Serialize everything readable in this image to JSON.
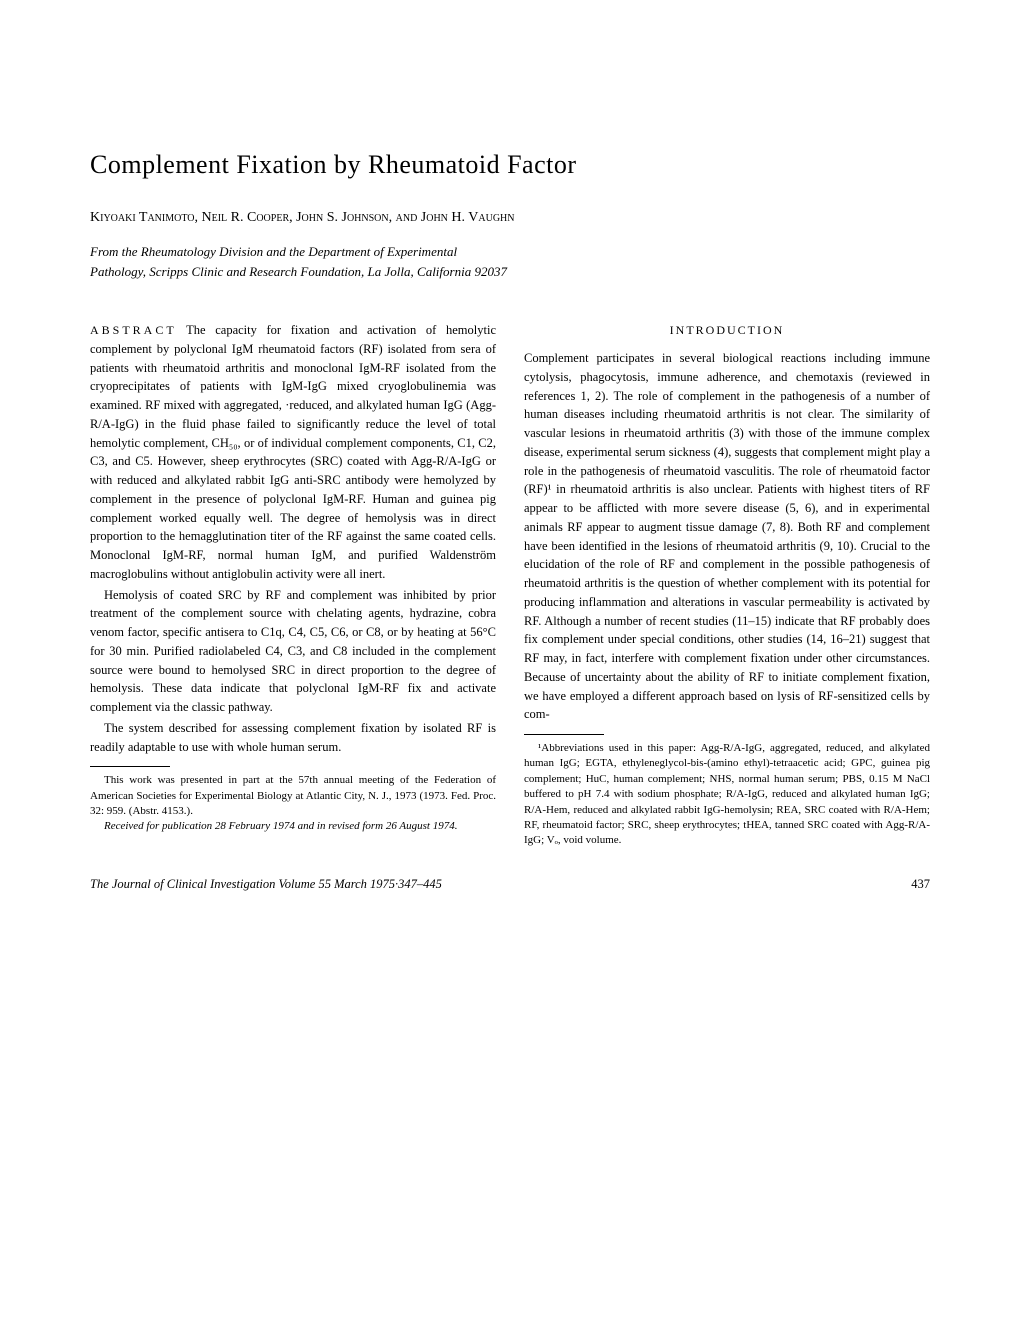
{
  "title": "Complement Fixation by Rheumatoid Factor",
  "authors": "Kiyoaki Tanimoto, Neil R. Cooper, John S. Johnson, and John H. Vaughn",
  "affiliation_line1": "From the Rheumatology Division and the Department of Experimental",
  "affiliation_line2": "Pathology, Scripps Clinic and Research Foundation, La Jolla, California 92037",
  "abstract_label": "ABSTRACT",
  "abstract_p1": "The capacity for fixation and activation of hemolytic complement by polyclonal IgM rheumatoid factors (RF) isolated from sera of patients with rheumatoid arthritis and monoclonal IgM-RF isolated from the cryoprecipitates of patients with IgM-IgG mixed cryoglobulinemia was examined. RF mixed with aggregated, ·reduced, and alkylated human IgG (Agg-R/A-IgG) in the fluid phase failed to significantly reduce the level of total hemolytic complement, CH₅₀, or of individual complement components, C1, C2, C3, and C5. However, sheep erythrocytes (SRC) coated with Agg-R/A-IgG or with reduced and alkylated rabbit IgG anti-SRC antibody were hemolyzed by complement in the presence of polyclonal IgM-RF. Human and guinea pig complement worked equally well. The degree of hemolysis was in direct proportion to the hemagglutination titer of the RF against the same coated cells. Monoclonal IgM-RF, normal human IgM, and purified Waldenström macroglobulins without antiglobulin activity were all inert.",
  "abstract_p2": "Hemolysis of coated SRC by RF and complement was inhibited by prior treatment of the complement source with chelating agents, hydrazine, cobra venom factor, specific antisera to C1q, C4, C5, C6, or C8, or by heating at 56°C for 30 min. Purified radiolabeled C4, C3, and C8 included in the complement source were bound to hemolysed SRC in direct proportion to the degree of hemolysis. These data indicate that polyclonal IgM-RF fix and activate complement via the classic pathway.",
  "abstract_p3": "The system described for assessing complement fixation by isolated RF is readily adaptable to use with whole human serum.",
  "left_fn1": "This work was presented in part at the 57th annual meeting of the Federation of American Societies for Experimental Biology at Atlantic City, N. J., 1973 (1973. Fed. Proc. 32: 959. (Abstr. 4153.).",
  "left_fn2": "Received for publication 28 February 1974 and in revised form 26 August 1974.",
  "intro_head": "INTRODUCTION",
  "intro_p1": "Complement participates in several biological reactions including immune cytolysis, phagocytosis, immune adherence, and chemotaxis (reviewed in references 1, 2). The role of complement in the pathogenesis of a number of human diseases including rheumatoid arthritis is not clear. The similarity of vascular lesions in rheumatoid arthritis (3) with those of the immune complex disease, experimental serum sickness (4), suggests that complement might play a role in the pathogenesis of rheumatoid vasculitis. The role of rheumatoid factor (RF)¹ in rheumatoid arthritis is also unclear. Patients with highest titers of RF appear to be afflicted with more severe disease (5, 6), and in experimental animals RF appear to augment tissue damage (7, 8). Both RF and complement have been identified in the lesions of rheumatoid arthritis (9, 10). Crucial to the elucidation of the role of RF and complement in the possible pathogenesis of rheumatoid arthritis is the question of whether complement with its potential for producing inflammation and alterations in vascular permeability is activated by RF. Although a number of recent studies (11–15) indicate that RF probably does fix complement under special conditions, other studies (14, 16–21) suggest that RF may, in fact, interfere with complement fixation under other circumstances. Because of uncertainty about the ability of RF to initiate complement fixation, we have employed a different approach based on lysis of RF-sensitized cells by com-",
  "right_fn1": "¹Abbreviations used in this paper: Agg-R/A-IgG, aggregated, reduced, and alkylated human IgG; EGTA, ethyleneglycol-bis-(amino ethyl)-tetraacetic acid; GPC, guinea pig complement; HuC, human complement; NHS, normal human serum; PBS, 0.15 M NaCl buffered to pH 7.4 with sodium phosphate; R/A-IgG, reduced and alkylated human IgG; R/A-Hem, reduced and alkylated rabbit IgG-hemolysin; REA, SRC coated with R/A-Hem; RF, rheumatoid factor; SRC, sheep erythrocytes; tHEA, tanned SRC coated with Agg-R/A-IgG; Vₒ, void volume.",
  "journal": "The Journal of Clinical Investigation   Volume 55   March 1975·347–445",
  "page_number": "437"
}
